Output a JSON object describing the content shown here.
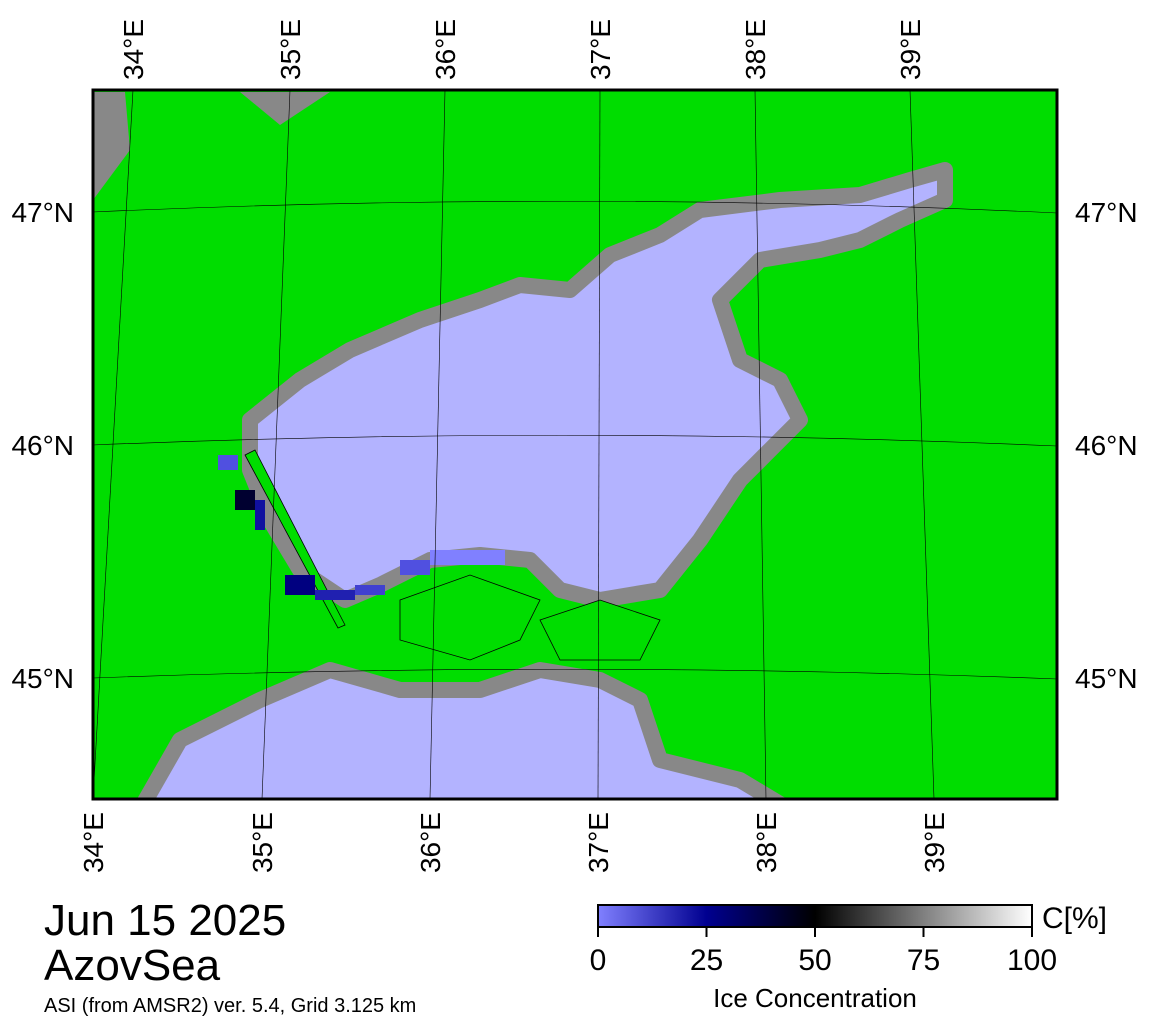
{
  "map": {
    "top_lon_labels": [
      "34°E",
      "35°E",
      "36°E",
      "37°E",
      "38°E",
      "39°E"
    ],
    "bottom_lon_labels": [
      "34°E",
      "35°E",
      "36°E",
      "37°E",
      "38°E",
      "39°E"
    ],
    "left_lat_labels": [
      "47°N",
      "46°N",
      "45°N"
    ],
    "right_lat_labels": [
      "47°N",
      "46°N",
      "45°N"
    ]
  },
  "caption": {
    "date": "Jun 15 2025",
    "region": "AzovSea",
    "source": "ASI (from AMSR2) ver. 5.4,  Grid 3.125 km"
  },
  "colorbar": {
    "unit": "C[%]",
    "label": "Ice Concentration",
    "range": [
      0,
      100
    ],
    "ticks": [
      0,
      25,
      50,
      75,
      100
    ]
  }
}
